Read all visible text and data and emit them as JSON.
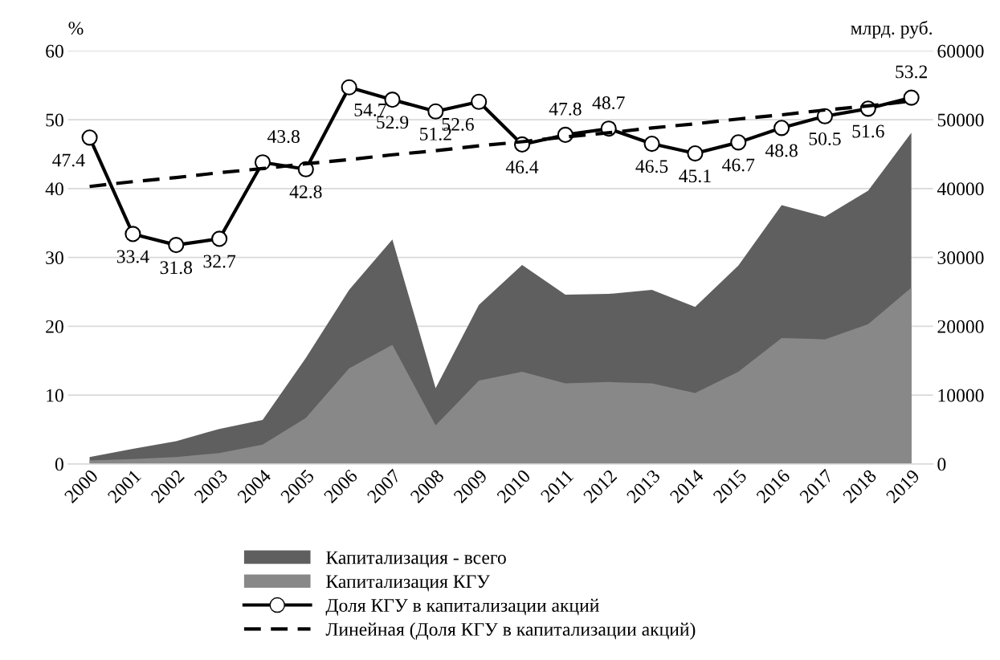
{
  "chart_data": {
    "type": "area",
    "categories": [
      "2000",
      "2001",
      "2002",
      "2003",
      "2004",
      "2005",
      "2006",
      "2007",
      "2008",
      "2009",
      "2010",
      "2011",
      "2012",
      "2013",
      "2014",
      "2015",
      "2016",
      "2017",
      "2018",
      "2019"
    ],
    "ylabel": "%",
    "y2label": "млрд. руб.",
    "ylim": [
      0,
      60
    ],
    "yticks": [
      0,
      10,
      20,
      30,
      40,
      50,
      60
    ],
    "y2lim": [
      0,
      60000
    ],
    "y2ticks": [
      0,
      10000,
      20000,
      30000,
      40000,
      50000,
      60000
    ],
    "grid": "y",
    "legend": "bottom",
    "series": [
      {
        "name": "Капитализация - всего",
        "axis": "y2",
        "color": "#5f5f5f",
        "values": [
          1000,
          2200,
          3300,
          5100,
          6400,
          15400,
          25300,
          32600,
          11000,
          23100,
          28900,
          24600,
          24700,
          25300,
          22800,
          28800,
          37600,
          35900,
          39700,
          48100
        ]
      },
      {
        "name": "Капитализация КГУ",
        "axis": "y2",
        "color": "#888888",
        "values": [
          500,
          700,
          1000,
          1600,
          2800,
          6700,
          13900,
          17300,
          5600,
          12100,
          13400,
          11700,
          11900,
          11700,
          10300,
          13400,
          18300,
          18100,
          20300,
          25600
        ]
      },
      {
        "name": "Доля КГУ в капитализации акций",
        "type": "line",
        "axis": "y",
        "color": "#000000",
        "marker": "circle",
        "line_style": "solid",
        "data_labels": true,
        "values": [
          47.4,
          33.4,
          31.8,
          32.7,
          43.8,
          42.8,
          54.7,
          52.9,
          51.2,
          52.6,
          46.4,
          47.8,
          48.7,
          46.5,
          45.1,
          46.7,
          48.8,
          50.5,
          51.6,
          53.2
        ]
      },
      {
        "name": "Линейная (Доля КГУ в капитализации акций)",
        "type": "line",
        "axis": "y",
        "color": "#000000",
        "marker": "none",
        "line_style": "dashed",
        "values": [
          40.3,
          41.0,
          41.6,
          42.3,
          42.9,
          43.6,
          44.2,
          44.9,
          45.5,
          46.2,
          46.8,
          47.5,
          48.1,
          48.8,
          49.4,
          50.1,
          50.7,
          51.4,
          52.0,
          52.7
        ]
      }
    ]
  }
}
